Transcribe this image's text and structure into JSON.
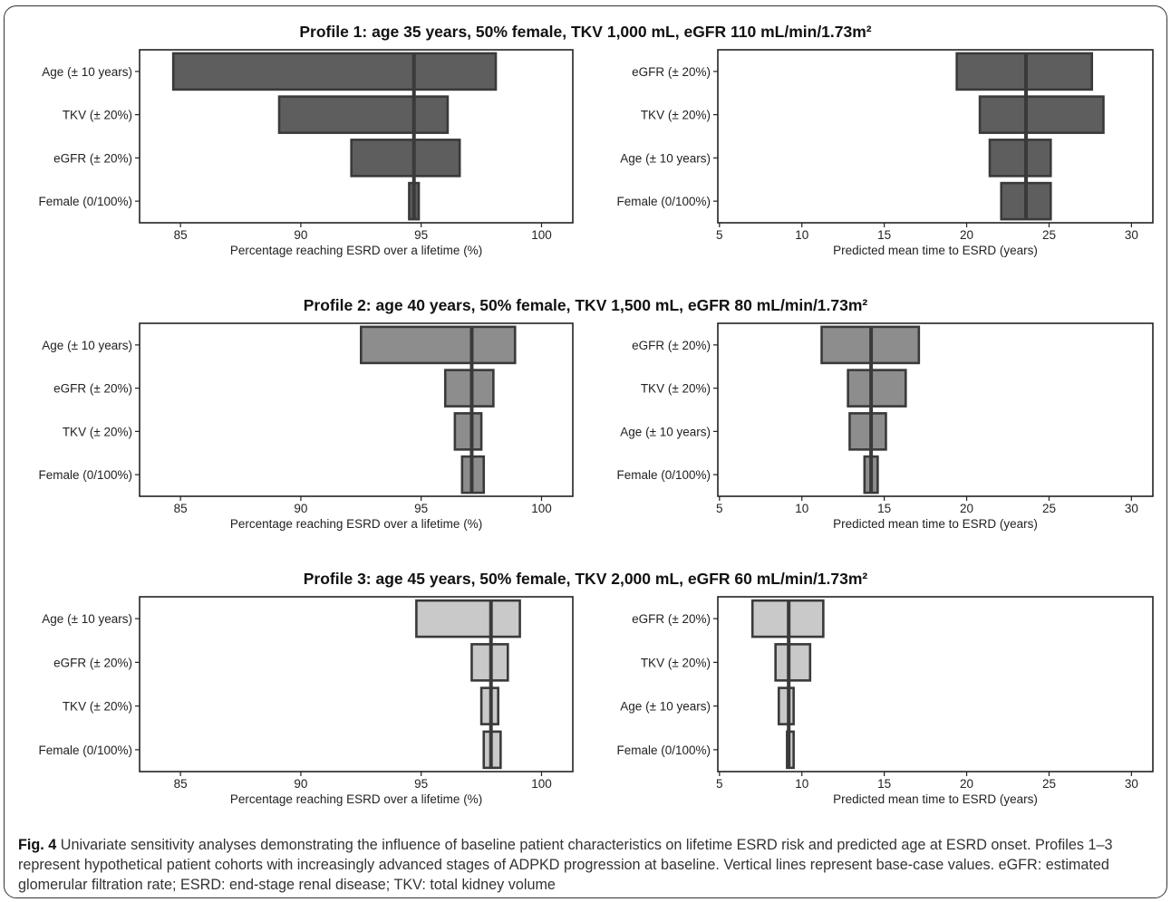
{
  "figure": {
    "caption_label": "Fig. 4",
    "caption_text": "Univariate sensitivity analyses demonstrating the influence of baseline patient characteristics on lifetime ESRD risk and predicted age at ESRD onset. Profiles 1–3 represent hypothetical patient cohorts with increasingly advanced stages of ADPKD progression at baseline. Vertical lines represent base-case values. eGFR: estimated glomerular filtration rate; ESRD: end-stage renal disease; TKV: total kidney volume"
  },
  "colors": {
    "profile1_fill": "#5e5e5e",
    "profile2_fill": "#8d8d8d",
    "profile3_fill": "#c9c9c9",
    "bar_stroke": "#3a3a3a",
    "base_line": "#3a3a3a"
  },
  "chart_data": [
    {
      "type": "bar",
      "orientation": "horizontal",
      "subtype": "tornado",
      "profile_title": "Profile 1: age 35 years, 50% female, TKV 1,000 mL, eGFR 110 mL/min/1.73m²",
      "xlabel": "Percentage reaching ESRD over a lifetime (%)",
      "xlim": [
        83.3,
        101.3
      ],
      "xticks": [
        85,
        90,
        95,
        100
      ],
      "base": 94.7,
      "categories": [
        "Age (± 10 years)",
        "TKV (± 20%)",
        "eGFR (± 20%)",
        "Female (0/100%)"
      ],
      "ranges": [
        [
          84.7,
          98.1
        ],
        [
          89.1,
          96.1
        ],
        [
          92.1,
          96.6
        ],
        [
          94.5,
          94.9
        ]
      ]
    },
    {
      "type": "bar",
      "orientation": "horizontal",
      "subtype": "tornado",
      "profile_title": "Profile 1: age 35 years, 50% female, TKV 1,000 mL, eGFR 110 mL/min/1.73m²",
      "xlabel": "Predicted mean time to ESRD (years)",
      "xlim": [
        4.9,
        31.3
      ],
      "xticks": [
        5,
        10,
        15,
        20,
        25,
        30
      ],
      "base": 23.6,
      "categories": [
        "eGFR (± 20%)",
        "TKV (± 20%)",
        "Age (± 10 years)",
        "Female (0/100%)"
      ],
      "ranges": [
        [
          19.4,
          27.6
        ],
        [
          20.8,
          28.3
        ],
        [
          21.4,
          25.1
        ],
        [
          22.1,
          25.1
        ]
      ]
    },
    {
      "type": "bar",
      "orientation": "horizontal",
      "subtype": "tornado",
      "profile_title": "Profile 2: age 40 years, 50% female, TKV 1,500 mL, eGFR 80 mL/min/1.73m²",
      "xlabel": "Percentage reaching ESRD over a lifetime (%)",
      "xlim": [
        83.3,
        101.3
      ],
      "xticks": [
        85,
        90,
        95,
        100
      ],
      "base": 97.1,
      "categories": [
        "Age (± 10 years)",
        "eGFR (± 20%)",
        "TKV (± 20%)",
        "Female (0/100%)"
      ],
      "ranges": [
        [
          92.5,
          98.9
        ],
        [
          96.0,
          98.0
        ],
        [
          96.4,
          97.5
        ],
        [
          96.7,
          97.6
        ]
      ]
    },
    {
      "type": "bar",
      "orientation": "horizontal",
      "subtype": "tornado",
      "profile_title": "Profile 2: age 40 years, 50% female, TKV 1,500 mL, eGFR 80 mL/min/1.73m²",
      "xlabel": "Predicted mean time to ESRD (years)",
      "xlim": [
        4.9,
        31.3
      ],
      "xticks": [
        5,
        10,
        15,
        20,
        25,
        30
      ],
      "base": 14.2,
      "categories": [
        "eGFR (± 20%)",
        "TKV (± 20%)",
        "Age (± 10 years)",
        "Female (0/100%)"
      ],
      "ranges": [
        [
          11.2,
          17.1
        ],
        [
          12.8,
          16.3
        ],
        [
          12.9,
          15.1
        ],
        [
          13.8,
          14.6
        ]
      ]
    },
    {
      "type": "bar",
      "orientation": "horizontal",
      "subtype": "tornado",
      "profile_title": "Profile 3: age 45 years, 50% female, TKV 2,000 mL, eGFR 60 mL/min/1.73m²",
      "xlabel": "Percentage reaching ESRD over a lifetime (%)",
      "xlim": [
        83.3,
        101.3
      ],
      "xticks": [
        85,
        90,
        95,
        100
      ],
      "base": 97.9,
      "categories": [
        "Age (± 10 years)",
        "eGFR (± 20%)",
        "TKV (± 20%)",
        "Female (0/100%)"
      ],
      "ranges": [
        [
          94.8,
          99.1
        ],
        [
          97.1,
          98.6
        ],
        [
          97.5,
          98.2
        ],
        [
          97.6,
          98.3
        ]
      ]
    },
    {
      "type": "bar",
      "orientation": "horizontal",
      "subtype": "tornado",
      "profile_title": "Profile 3: age 45 years, 50% female, TKV 2,000 mL, eGFR 60 mL/min/1.73m²",
      "xlabel": "Predicted mean time to ESRD (years)",
      "xlim": [
        4.9,
        31.3
      ],
      "xticks": [
        5,
        10,
        15,
        20,
        25,
        30
      ],
      "base": 9.2,
      "categories": [
        "eGFR (± 20%)",
        "TKV (± 20%)",
        "Age (± 10 years)",
        "Female (0/100%)"
      ],
      "ranges": [
        [
          7.0,
          11.3
        ],
        [
          8.4,
          10.5
        ],
        [
          8.6,
          9.5
        ],
        [
          9.1,
          9.5
        ]
      ]
    }
  ]
}
